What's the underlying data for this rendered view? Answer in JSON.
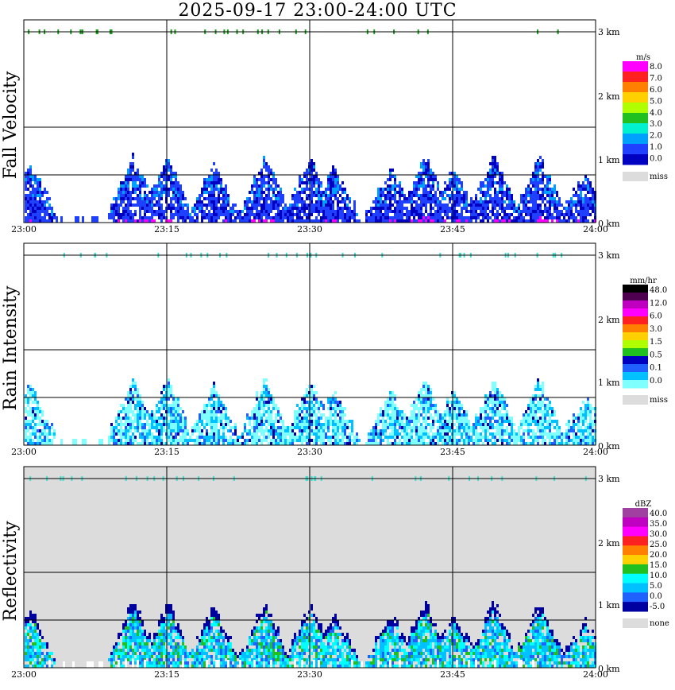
{
  "title": "2025-09-17   23:00-24:00 UTC",
  "x_ticks": [
    "23:00",
    "23:15",
    "23:30",
    "23:45",
    "24:00"
  ],
  "y_ticks": [
    "0 km",
    "1 km",
    "2 km",
    "3 km"
  ],
  "chart_data": [
    {
      "type": "heatmap",
      "title": "2025-09-17   23:00-24:00 UTC",
      "ylabel": "Fall Velocity",
      "xlabel": "",
      "x_range": [
        "23:00",
        "24:00"
      ],
      "y_range_km": [
        0,
        3.2
      ],
      "grid": true,
      "background": "#ffffff",
      "legend": {
        "placement": "right",
        "unit": "m/s",
        "labels": [
          "8.0",
          "7.0",
          "6.0",
          "5.0",
          "4.0",
          "3.0",
          "2.0",
          "1.0",
          "0.0"
        ],
        "colors": [
          "#ff00ff",
          "#ff2020",
          "#ff8000",
          "#ffd000",
          "#b0ff00",
          "#20c020",
          "#00f0d0",
          "#00a0ff",
          "#2040ff",
          "#0000c0"
        ],
        "miss_label": "miss",
        "miss_color": "#dcdcdc"
      },
      "main_color": "#2040ff",
      "highlight_color": "#ff00ff",
      "dot_color": "#20a020"
    },
    {
      "type": "heatmap",
      "ylabel": "Rain Intensity",
      "xlabel": "",
      "x_range": [
        "23:00",
        "24:00"
      ],
      "y_range_km": [
        0,
        3.2
      ],
      "grid": true,
      "background": "#ffffff",
      "legend": {
        "placement": "right",
        "unit": "mm/hr",
        "labels": [
          "48.0",
          "12.0",
          "6.0",
          "3.0",
          "1.5",
          "0.5",
          "0.1",
          "0.0"
        ],
        "colors": [
          "#000000",
          "#500050",
          "#c000c0",
          "#ff00ff",
          "#ff2020",
          "#ff8000",
          "#ffd000",
          "#b0ff00",
          "#20c020",
          "#0000c0",
          "#2060ff",
          "#00c0ff",
          "#80ffff"
        ],
        "miss_label": "miss",
        "miss_color": "#dcdcdc"
      },
      "main_color": "#80ffff",
      "highlight_color": "#0000a0",
      "dot_color": "#40e0d0"
    },
    {
      "type": "heatmap",
      "ylabel": "Reflectivity",
      "xlabel": "",
      "x_range": [
        "23:00",
        "24:00"
      ],
      "y_range_km": [
        0,
        3.2
      ],
      "grid": true,
      "background": "#dcdcdc",
      "legend": {
        "placement": "right",
        "unit": "dBZ",
        "labels": [
          "40.0",
          "35.0",
          "30.0",
          "25.0",
          "20.0",
          "15.0",
          "10.0",
          "5.0",
          "0.0",
          "-5.0"
        ],
        "colors": [
          "#a040a0",
          "#c000c0",
          "#ff00ff",
          "#ff2020",
          "#ff8000",
          "#ffd000",
          "#20c020",
          "#00ffff",
          "#00c0ff",
          "#2060ff",
          "#0000a0"
        ],
        "miss_label": "none",
        "miss_color": "#dcdcdc"
      },
      "main_color": "#00c0ff",
      "highlight_color": "#20c020",
      "dot_color": "#40e0d0"
    }
  ]
}
